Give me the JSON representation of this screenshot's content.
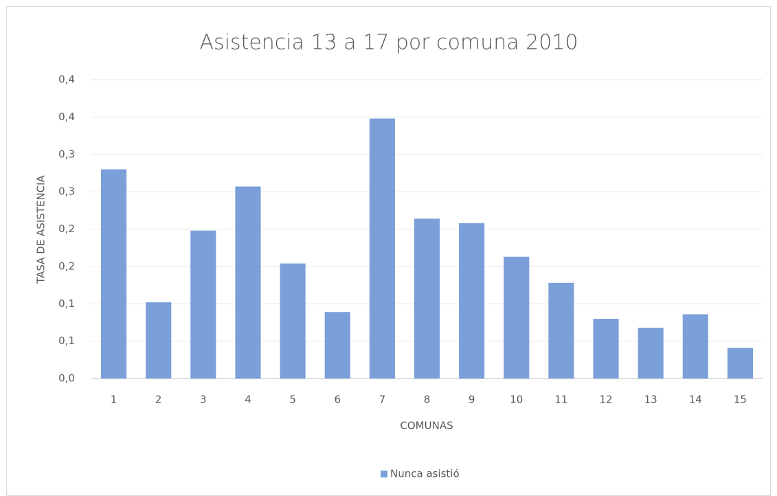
{
  "chart_data": {
    "type": "bar",
    "title": "Asistencia 13 a 17 por comuna 2010",
    "x_label": "COMUNAS",
    "y_label": "TASA DE ASISTENCIA",
    "categories": [
      "1",
      "2",
      "3",
      "4",
      "5",
      "6",
      "7",
      "8",
      "9",
      "10",
      "11",
      "12",
      "13",
      "14",
      "15"
    ],
    "series": [
      {
        "name": "Nunca asistió",
        "color": "#7b9fd9",
        "values": [
          0.28,
          0.102,
          0.198,
          0.257,
          0.154,
          0.089,
          0.348,
          0.214,
          0.208,
          0.163,
          0.128,
          0.08,
          0.068,
          0.086,
          0.041
        ]
      }
    ],
    "ylim": [
      0,
      0.4
    ],
    "yticks": [
      {
        "value": 0,
        "label": "0,0"
      },
      {
        "value": 0.05,
        "label": "0,1"
      },
      {
        "value": 0.1,
        "label": "0,1"
      },
      {
        "value": 0.15,
        "label": "0,2"
      },
      {
        "value": 0.2,
        "label": "0,2"
      },
      {
        "value": 0.25,
        "label": "0,3"
      },
      {
        "value": 0.3,
        "label": "0,3"
      },
      {
        "value": 0.35,
        "label": "0,4"
      },
      {
        "value": 0.4,
        "label": "0,4"
      }
    ],
    "grid": true,
    "legend": "bottom"
  }
}
